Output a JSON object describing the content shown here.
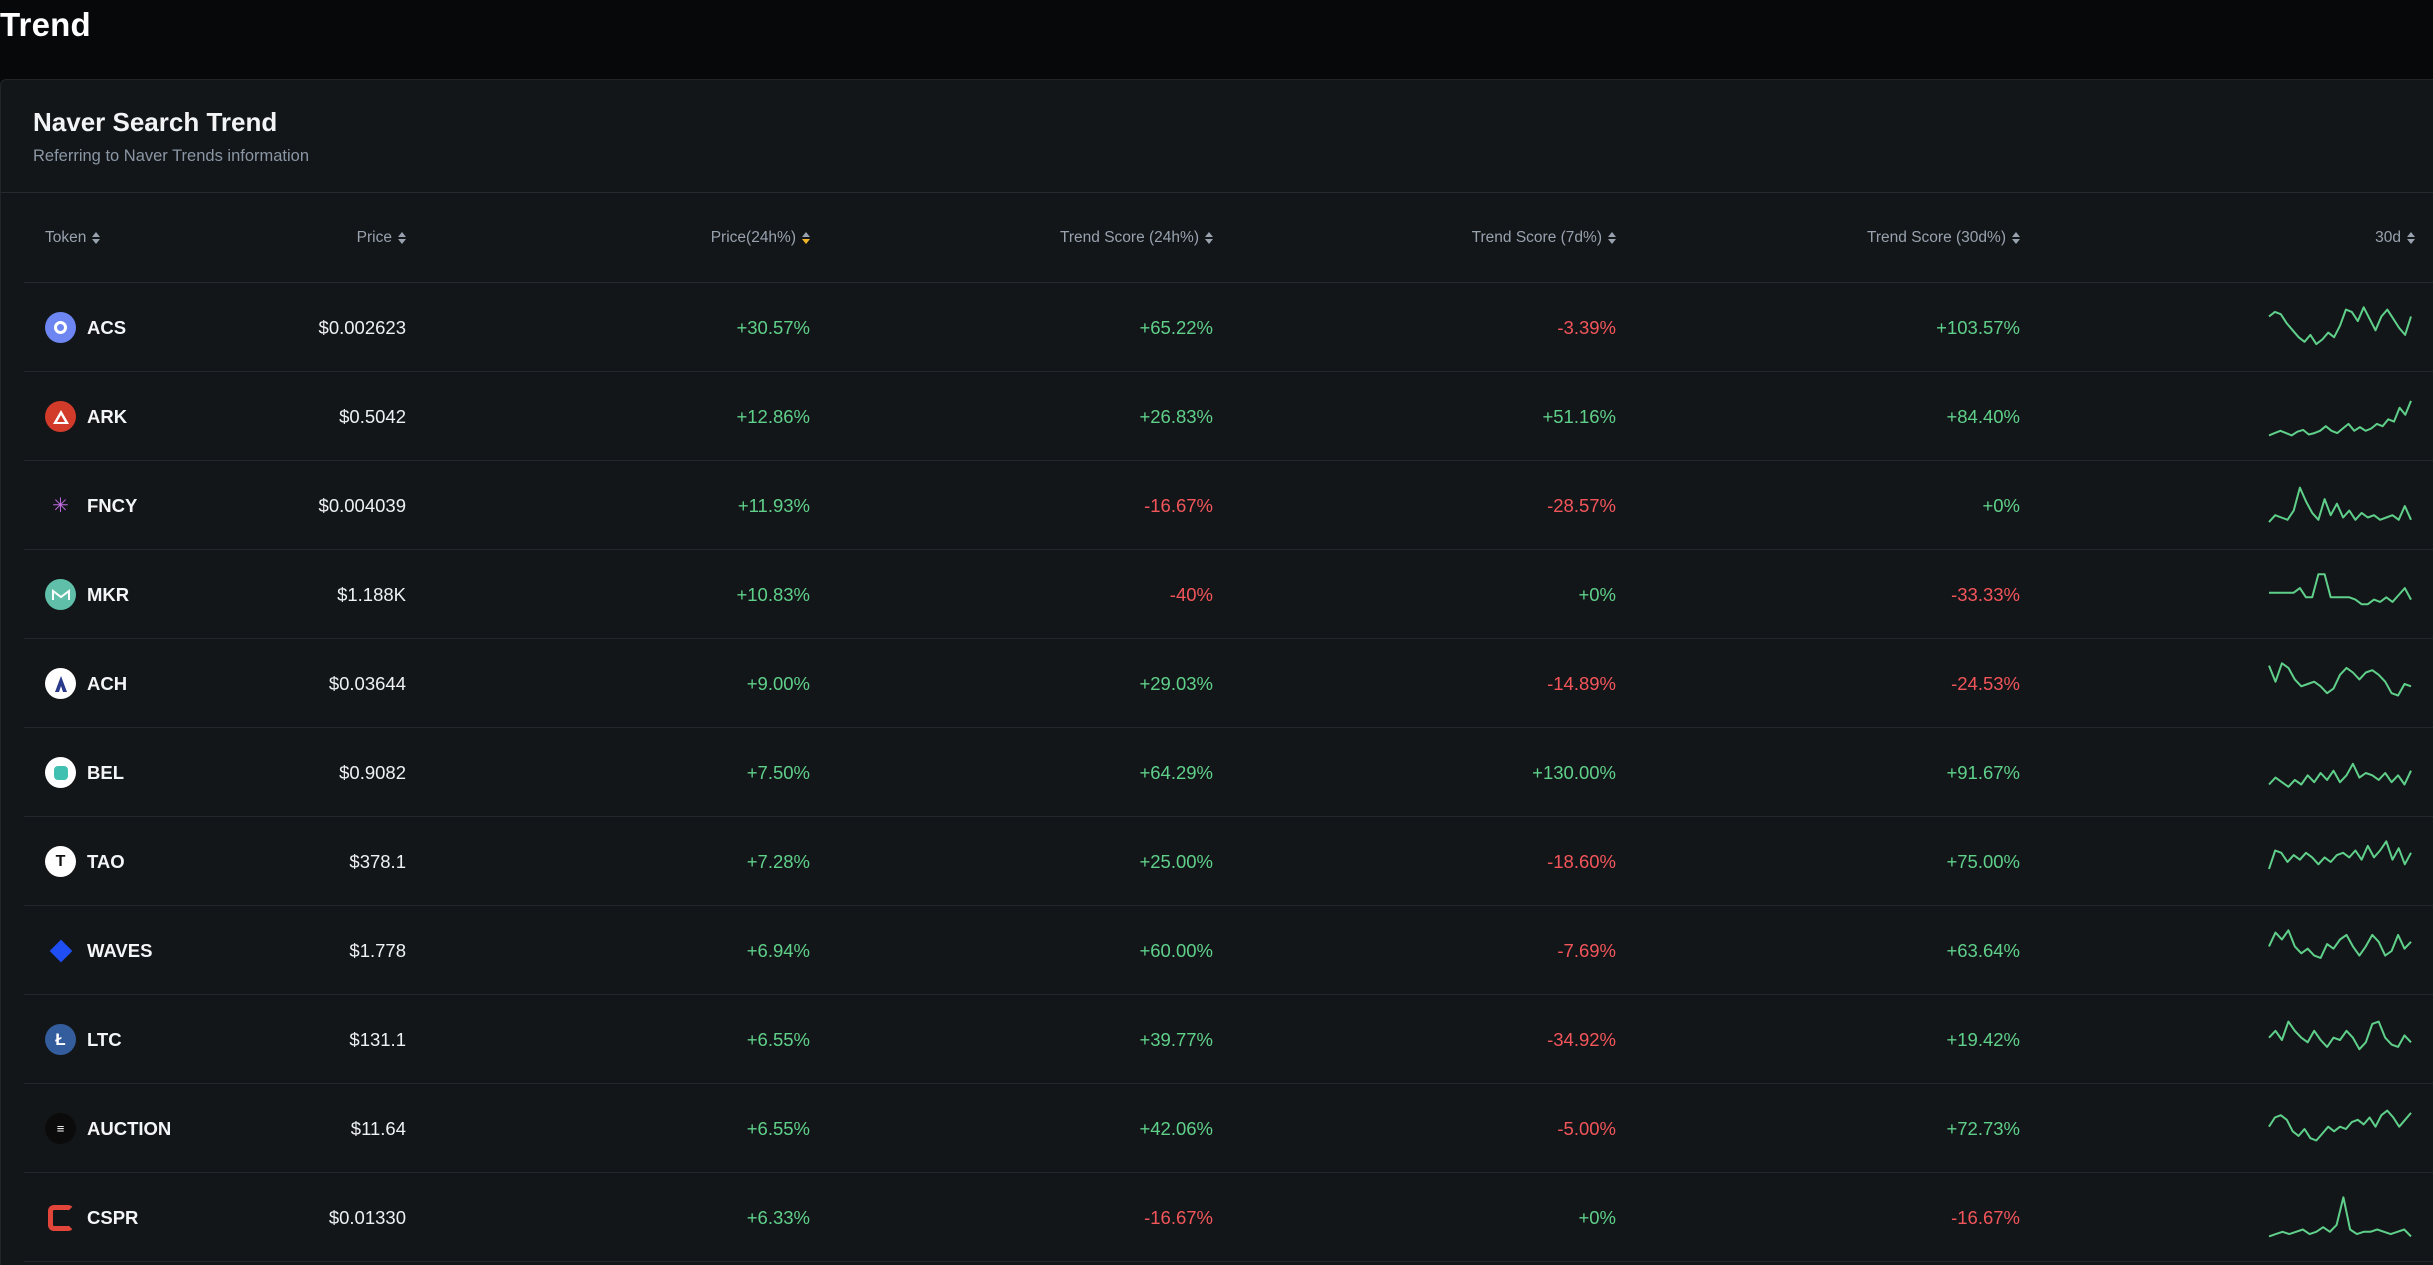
{
  "page": {
    "title": "Trend"
  },
  "card": {
    "title": "Naver Search Trend",
    "subtitle": "Referring to Naver Trends information"
  },
  "table": {
    "columns": [
      {
        "key": "token",
        "label": "Token"
      },
      {
        "key": "price",
        "label": "Price"
      },
      {
        "key": "price24h",
        "label": "Price(24h%)",
        "active_sort": true
      },
      {
        "key": "trend24h",
        "label": "Trend Score (24h%)"
      },
      {
        "key": "trend7d",
        "label": "Trend Score (7d%)"
      },
      {
        "key": "trend30d",
        "label": "Trend Score (30d%)"
      },
      {
        "key": "spark",
        "label": "30d"
      }
    ],
    "rows": [
      {
        "token": "ACS",
        "icon": "acs-icon",
        "price": "$0.002623",
        "price24h": "+30.57%",
        "trend24h": "+65.22%",
        "trend7d": "-3.39%",
        "trend30d": "+103.57%",
        "spark": [
          0.75,
          0.85,
          0.8,
          0.6,
          0.45,
          0.3,
          0.2,
          0.35,
          0.15,
          0.25,
          0.4,
          0.3,
          0.55,
          0.9,
          0.85,
          0.65,
          0.95,
          0.7,
          0.45,
          0.75,
          0.9,
          0.7,
          0.5,
          0.35,
          0.75
        ]
      },
      {
        "token": "ARK",
        "icon": "ark-icon",
        "price": "$0.5042",
        "price24h": "+12.86%",
        "trend24h": "+26.83%",
        "trend7d": "+51.16%",
        "trend30d": "+84.40%",
        "spark": [
          0.1,
          0.15,
          0.2,
          0.15,
          0.1,
          0.18,
          0.22,
          0.12,
          0.15,
          0.2,
          0.3,
          0.2,
          0.15,
          0.25,
          0.35,
          0.2,
          0.28,
          0.2,
          0.25,
          0.35,
          0.3,
          0.45,
          0.4,
          0.7,
          0.55,
          0.85
        ]
      },
      {
        "token": "FNCY",
        "icon": "fncy-icon",
        "price": "$0.004039",
        "price24h": "+11.93%",
        "trend24h": "-16.67%",
        "trend7d": "-28.57%",
        "trend30d": "+0%",
        "spark": [
          0.15,
          0.3,
          0.25,
          0.2,
          0.4,
          0.9,
          0.6,
          0.35,
          0.2,
          0.65,
          0.3,
          0.55,
          0.25,
          0.4,
          0.2,
          0.35,
          0.25,
          0.3,
          0.2,
          0.25,
          0.3,
          0.2,
          0.5,
          0.2
        ]
      },
      {
        "token": "MKR",
        "icon": "mkr-icon",
        "price": "$1.188K",
        "price24h": "+10.83%",
        "trend24h": "-40%",
        "trend7d": "+0%",
        "trend30d": "-33.33%",
        "spark": [
          0.55,
          0.55,
          0.55,
          0.55,
          0.55,
          0.65,
          0.45,
          0.45,
          0.95,
          0.95,
          0.45,
          0.45,
          0.45,
          0.45,
          0.4,
          0.3,
          0.3,
          0.4,
          0.35,
          0.45,
          0.35,
          0.5,
          0.65,
          0.4
        ]
      },
      {
        "token": "ACH",
        "icon": "ach-icon",
        "price": "$0.03644",
        "price24h": "+9.00%",
        "trend24h": "+29.03%",
        "trend7d": "-14.89%",
        "trend30d": "-24.53%",
        "spark": [
          0.9,
          0.55,
          0.95,
          0.85,
          0.6,
          0.45,
          0.5,
          0.55,
          0.45,
          0.3,
          0.4,
          0.7,
          0.85,
          0.75,
          0.6,
          0.75,
          0.8,
          0.7,
          0.55,
          0.3,
          0.25,
          0.5,
          0.45
        ]
      },
      {
        "token": "BEL",
        "icon": "bel-icon",
        "price": "$0.9082",
        "price24h": "+7.50%",
        "trend24h": "+64.29%",
        "trend7d": "+130.00%",
        "trend30d": "+91.67%",
        "spark": [
          0.25,
          0.4,
          0.3,
          0.2,
          0.35,
          0.25,
          0.45,
          0.3,
          0.5,
          0.35,
          0.55,
          0.3,
          0.45,
          0.7,
          0.4,
          0.5,
          0.45,
          0.35,
          0.5,
          0.3,
          0.45,
          0.25,
          0.55
        ]
      },
      {
        "token": "TAO",
        "icon": "tao-icon",
        "price": "$378.1",
        "price24h": "+7.28%",
        "trend24h": "+25.00%",
        "trend7d": "-18.60%",
        "trend30d": "+75.00%",
        "spark": [
          0.35,
          0.75,
          0.7,
          0.5,
          0.65,
          0.55,
          0.7,
          0.6,
          0.45,
          0.6,
          0.5,
          0.65,
          0.7,
          0.6,
          0.75,
          0.55,
          0.85,
          0.6,
          0.75,
          0.95,
          0.55,
          0.8,
          0.45,
          0.7
        ]
      },
      {
        "token": "WAVES",
        "icon": "waves-icon",
        "price": "$1.778",
        "price24h": "+6.94%",
        "trend24h": "+60.00%",
        "trend7d": "-7.69%",
        "trend30d": "+63.64%",
        "spark": [
          0.6,
          0.9,
          0.75,
          0.95,
          0.6,
          0.45,
          0.55,
          0.4,
          0.35,
          0.65,
          0.55,
          0.75,
          0.85,
          0.6,
          0.4,
          0.6,
          0.85,
          0.7,
          0.4,
          0.5,
          0.85,
          0.55,
          0.7
        ]
      },
      {
        "token": "LTC",
        "icon": "ltc-icon",
        "price": "$131.1",
        "price24h": "+6.55%",
        "trend24h": "+39.77%",
        "trend7d": "-34.92%",
        "trend30d": "+19.42%",
        "spark": [
          0.55,
          0.7,
          0.5,
          0.9,
          0.7,
          0.55,
          0.45,
          0.7,
          0.5,
          0.35,
          0.55,
          0.5,
          0.7,
          0.55,
          0.3,
          0.45,
          0.85,
          0.9,
          0.55,
          0.4,
          0.35,
          0.6,
          0.45
        ]
      },
      {
        "token": "AUCTION",
        "icon": "auction-icon",
        "price": "$11.64",
        "price24h": "+6.55%",
        "trend24h": "+42.06%",
        "trend7d": "-5.00%",
        "trend30d": "+72.73%",
        "spark": [
          0.55,
          0.75,
          0.8,
          0.7,
          0.45,
          0.35,
          0.5,
          0.3,
          0.25,
          0.4,
          0.55,
          0.45,
          0.55,
          0.5,
          0.65,
          0.7,
          0.6,
          0.75,
          0.55,
          0.8,
          0.9,
          0.75,
          0.55,
          0.7,
          0.85
        ]
      },
      {
        "token": "CSPR",
        "icon": "cspr-icon",
        "price": "$0.01330",
        "price24h": "+6.33%",
        "trend24h": "-16.67%",
        "trend7d": "+0%",
        "trend30d": "-16.67%",
        "spark": [
          0.1,
          0.15,
          0.2,
          0.15,
          0.2,
          0.25,
          0.15,
          0.2,
          0.3,
          0.2,
          0.35,
          0.95,
          0.25,
          0.15,
          0.2,
          0.2,
          0.25,
          0.2,
          0.15,
          0.2,
          0.25,
          0.1
        ]
      }
    ]
  },
  "colors": {
    "positive": "#5fd08a",
    "negative": "#f2555a",
    "sparkline": "#5fd08a",
    "active_sort": "#f0b429"
  }
}
